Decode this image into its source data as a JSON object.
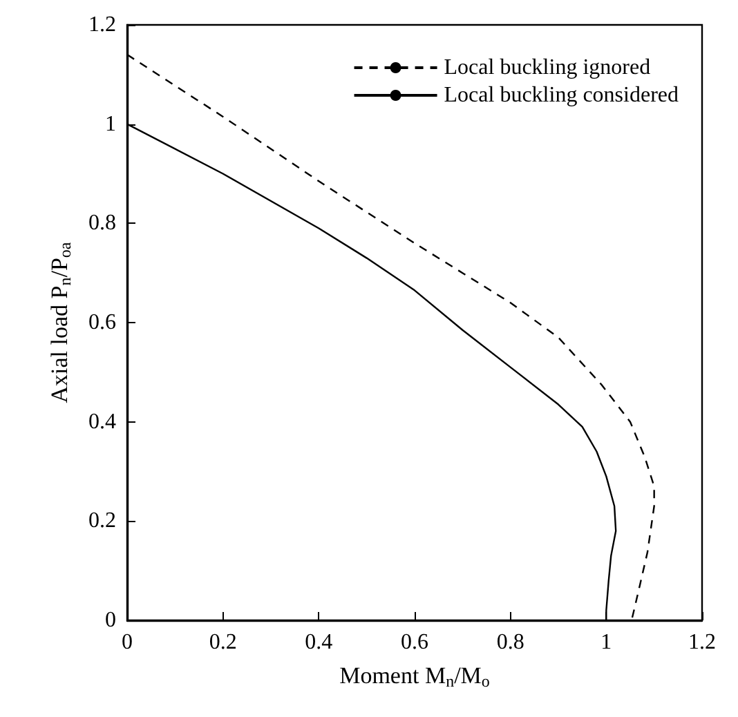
{
  "chart_data": {
    "type": "line",
    "xlabel": "Moment M$_{n}$/M$_{o}$",
    "ylabel": "Axial load P$_{n}$/P$_{oa}$",
    "xlim": [
      0,
      1.2
    ],
    "ylim": [
      0,
      1.2
    ],
    "xticks": [
      0,
      0.2,
      0.4,
      0.6,
      0.8,
      1,
      1.2
    ],
    "yticks": [
      0,
      0.2,
      0.4,
      0.6,
      0.8,
      1,
      1.2
    ],
    "grid": false,
    "legend": "top right",
    "marker": "none",
    "series": [
      {
        "name": "Local buckling ignored",
        "color": "#000000",
        "line_style": "dashed",
        "x": [
          0,
          0.2,
          0.4,
          0.6,
          0.7,
          0.8,
          0.9,
          0.99,
          1.05,
          1.08,
          1.1,
          1.1,
          1.086,
          1.07,
          1.053
        ],
        "values": [
          1.14,
          1.015,
          0.885,
          0.76,
          0.7,
          0.64,
          0.57,
          0.475,
          0.4,
          0.33,
          0.27,
          0.23,
          0.137,
          0.07,
          0
        ]
      },
      {
        "name": "Local buckling considered",
        "color": "#000000",
        "line_style": "solid",
        "x": [
          0,
          0.2,
          0.4,
          0.5,
          0.6,
          0.7,
          0.8,
          0.9,
          0.95,
          0.98,
          1,
          1.017,
          1.02,
          1.01,
          1.005,
          1,
          1
        ],
        "values": [
          1,
          0.9,
          0.79,
          0.73,
          0.665,
          0.585,
          0.51,
          0.435,
          0.39,
          0.34,
          0.29,
          0.23,
          0.18,
          0.13,
          0.08,
          0.02,
          0
        ]
      }
    ]
  }
}
